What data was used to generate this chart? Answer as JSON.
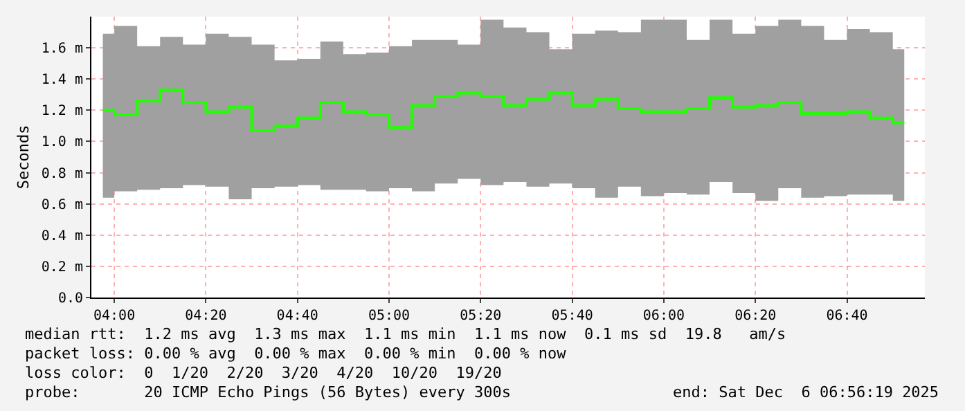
{
  "chart_data": {
    "type": "step",
    "ylabel": "Seconds",
    "x": [
      "2025-12-06T03:57:30",
      "2025-12-06T04:02:30",
      "2025-12-06T04:07:30",
      "2025-12-06T04:12:30",
      "2025-12-06T04:17:30",
      "2025-12-06T04:22:30",
      "2025-12-06T04:27:30",
      "2025-12-06T04:32:30",
      "2025-12-06T04:37:30",
      "2025-12-06T04:42:30",
      "2025-12-06T04:47:30",
      "2025-12-06T04:52:30",
      "2025-12-06T04:57:30",
      "2025-12-06T05:02:30",
      "2025-12-06T05:07:30",
      "2025-12-06T05:12:30",
      "2025-12-06T05:17:30",
      "2025-12-06T05:22:30",
      "2025-12-06T05:27:30",
      "2025-12-06T05:32:30",
      "2025-12-06T05:37:30",
      "2025-12-06T05:42:30",
      "2025-12-06T05:47:30",
      "2025-12-06T05:52:30",
      "2025-12-06T05:57:30",
      "2025-12-06T06:02:30",
      "2025-12-06T06:07:30",
      "2025-12-06T06:12:30",
      "2025-12-06T06:17:30",
      "2025-12-06T06:22:30",
      "2025-12-06T06:27:30",
      "2025-12-06T06:32:30",
      "2025-12-06T06:37:30",
      "2025-12-06T06:42:30",
      "2025-12-06T06:47:30",
      "2025-12-06T06:52:30"
    ],
    "series": [
      {
        "color": "#20ff00",
        "values": [
          1.2,
          1.17,
          1.26,
          1.33,
          1.25,
          1.19,
          1.22,
          1.07,
          1.1,
          1.15,
          1.25,
          1.19,
          1.17,
          1.09,
          1.23,
          1.29,
          1.31,
          1.29,
          1.23,
          1.27,
          1.31,
          1.23,
          1.27,
          1.21,
          1.19,
          1.19,
          1.21,
          1.28,
          1.22,
          1.23,
          1.25,
          1.18,
          1.18,
          1.19,
          1.15,
          1.12
        ],
        "lower": [
          0.64,
          0.68,
          0.69,
          0.7,
          0.72,
          0.71,
          0.63,
          0.7,
          0.71,
          0.72,
          0.69,
          0.69,
          0.68,
          0.7,
          0.68,
          0.73,
          0.76,
          0.72,
          0.74,
          0.71,
          0.73,
          0.7,
          0.64,
          0.71,
          0.65,
          0.67,
          0.66,
          0.74,
          0.67,
          0.62,
          0.7,
          0.64,
          0.65,
          0.66,
          0.66,
          0.62
        ],
        "upper": [
          1.69,
          1.74,
          1.61,
          1.67,
          1.62,
          1.69,
          1.67,
          1.62,
          1.52,
          1.53,
          1.64,
          1.56,
          1.57,
          1.61,
          1.65,
          1.65,
          1.62,
          1.78,
          1.73,
          1.7,
          1.59,
          1.69,
          1.71,
          1.7,
          1.78,
          1.78,
          1.65,
          1.78,
          1.69,
          1.74,
          1.78,
          1.74,
          1.65,
          1.72,
          1.7,
          1.59
        ]
      }
    ],
    "xlim": [
      "2025-12-06T03:55",
      "2025-12-06T06:57"
    ],
    "xticks": [
      {
        "value": "2025-12-06T04:00",
        "label": "04:00"
      },
      {
        "value": "2025-12-06T04:20",
        "label": "04:20"
      },
      {
        "value": "2025-12-06T04:40",
        "label": "04:40"
      },
      {
        "value": "2025-12-06T05:00",
        "label": "05:00"
      },
      {
        "value": "2025-12-06T05:20",
        "label": "05:20"
      },
      {
        "value": "2025-12-06T05:40",
        "label": "05:40"
      },
      {
        "value": "2025-12-06T06:00",
        "label": "06:00"
      },
      {
        "value": "2025-12-06T06:20",
        "label": "06:20"
      },
      {
        "value": "2025-12-06T06:40",
        "label": "06:40"
      }
    ],
    "ylim": [
      0,
      1.8
    ],
    "yticks": [
      {
        "value": 0,
        "label": "0.0"
      },
      {
        "value": 0.2,
        "label": "0.2 m"
      },
      {
        "value": 0.4,
        "label": "0.4 m"
      },
      {
        "value": 0.6,
        "label": "0.6 m"
      },
      {
        "value": 0.8,
        "label": "0.8 m"
      },
      {
        "value": 1.0,
        "label": "1.0 m"
      },
      {
        "value": 1.2,
        "label": "1.2 m"
      },
      {
        "value": 1.4,
        "label": "1.4 m"
      },
      {
        "value": 1.6,
        "label": "1.6 m"
      }
    ],
    "grid": true,
    "annotations": [
      "median rtt:  1.2 ms avg  1.3 ms max  1.1 ms min  1.1 ms now  0.1 ms sd  19.8   am/s",
      "packet loss: 0.00 % avg  0.00 % max  0.00 % min  0.00 % now",
      "loss color:  0  1/20  2/20  3/20  4/20  10/20  19/20",
      "probe:       20 ICMP Echo Pings (56 Bytes) every 300s",
      "end: Sat Dec  6 06:56:19 2025"
    ]
  }
}
